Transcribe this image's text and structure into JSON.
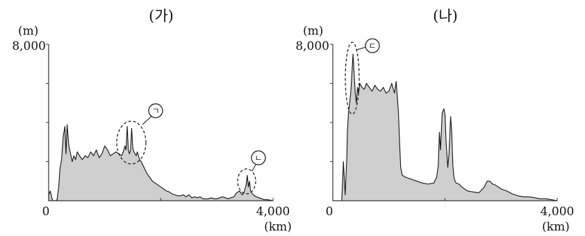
{
  "chart_data": [
    {
      "type": "area",
      "title": "(가)",
      "y_unit": "(m)",
      "x_unit": "(km)",
      "xlim": [
        0,
        4000
      ],
      "ylim": [
        0,
        8000
      ],
      "xtick_labels": [
        "0",
        "4,000"
      ],
      "ytick_labels": [
        "8,000"
      ],
      "yticks_minor": [
        2000,
        4000,
        6000
      ],
      "xticks_minor": [
        2000
      ],
      "series": [
        {
          "x": [
            0,
            30,
            60,
            80,
            120,
            150,
            180,
            200,
            230,
            260,
            290,
            310,
            330,
            360,
            390,
            420,
            450,
            480,
            510,
            550,
            600,
            650,
            700,
            750,
            800,
            850,
            900,
            950,
            1000,
            1050,
            1100,
            1150,
            1200,
            1250,
            1300,
            1330,
            1360,
            1380,
            1400,
            1420,
            1440,
            1460,
            1480,
            1500,
            1520,
            1540,
            1560,
            1580,
            1600,
            1620,
            1650,
            1700,
            1750,
            1800,
            1850,
            1900,
            1950,
            2000,
            2050,
            2100,
            2150,
            2200,
            2250,
            2300,
            2350,
            2400,
            2450,
            2500,
            2550,
            2600,
            2650,
            2700,
            2750,
            2800,
            2850,
            2900,
            2950,
            3000,
            3050,
            3100,
            3150,
            3200,
            3250,
            3300,
            3350,
            3400,
            3450,
            3480,
            3500,
            3520,
            3540,
            3560,
            3580,
            3600,
            3620,
            3650,
            3700,
            3750,
            3800,
            3850,
            3900,
            3950,
            4000
          ],
          "y": [
            300,
            500,
            100,
            0,
            0,
            50,
            700,
            1600,
            2100,
            3300,
            3800,
            2400,
            3900,
            2800,
            2400,
            2000,
            2300,
            2100,
            2500,
            2300,
            2100,
            2300,
            2200,
            2500,
            2300,
            2600,
            2200,
            2400,
            2800,
            2600,
            2300,
            2400,
            2500,
            2400,
            2300,
            2500,
            2800,
            2600,
            3800,
            2600,
            2400,
            2600,
            3700,
            2700,
            2500,
            2400,
            2300,
            2500,
            2300,
            2100,
            2000,
            1700,
            1400,
            1200,
            1000,
            900,
            800,
            700,
            600,
            500,
            450,
            350,
            300,
            250,
            250,
            300,
            200,
            300,
            150,
            200,
            150,
            200,
            100,
            100,
            100,
            150,
            100,
            100,
            150,
            200,
            150,
            100,
            150,
            200,
            400,
            500,
            300,
            400,
            600,
            800,
            1300,
            700,
            1000,
            500,
            400,
            300,
            200,
            150,
            100,
            50,
            50,
            30,
            0
          ]
        }
      ],
      "annotations": [
        {
          "label": "ㄱ"
        },
        {
          "label": "ㄴ"
        }
      ]
    },
    {
      "type": "area",
      "title": "(나)",
      "y_unit": "(m)",
      "x_unit": "(km)",
      "xlim": [
        0,
        4000
      ],
      "ylim": [
        0,
        8000
      ],
      "xtick_labels": [
        "0",
        "4,000"
      ],
      "ytick_labels": [
        "8,000"
      ],
      "yticks_minor": [
        2000,
        4000,
        6000
      ],
      "xticks_minor": [
        2000
      ],
      "series": [
        {
          "x": [
            0,
            60,
            120,
            160,
            190,
            220,
            250,
            260,
            280,
            300,
            320,
            340,
            360,
            380,
            400,
            420,
            440,
            460,
            480,
            520,
            560,
            600,
            650,
            700,
            750,
            800,
            850,
            900,
            950,
            1000,
            1050,
            1100,
            1130,
            1150,
            1170,
            1190,
            1210,
            1240,
            1300,
            1400,
            1500,
            1600,
            1700,
            1800,
            1850,
            1880,
            1900,
            1920,
            1950,
            1980,
            2000,
            2020,
            2050,
            2070,
            2100,
            2120,
            2140,
            2160,
            2180,
            2200,
            2250,
            2300,
            2400,
            2500,
            2600,
            2700,
            2750,
            2800,
            2850,
            2900,
            2950,
            3000,
            3100,
            3200,
            3300,
            3400,
            3500,
            3600,
            3700,
            3800,
            3900,
            4000
          ],
          "y": [
            0,
            0,
            0,
            0,
            2000,
            300,
            2200,
            3500,
            4500,
            5000,
            5500,
            6500,
            7500,
            6500,
            5500,
            5000,
            5800,
            5500,
            6000,
            5800,
            5700,
            6000,
            5800,
            5600,
            5900,
            5700,
            5600,
            5800,
            5500,
            5600,
            6000,
            5500,
            6100,
            5300,
            4500,
            3000,
            1700,
            1300,
            1200,
            1100,
            1000,
            900,
            850,
            900,
            1200,
            1800,
            3500,
            2600,
            4500,
            4700,
            4400,
            3000,
            1700,
            2400,
            4300,
            3500,
            1800,
            1200,
            1000,
            900,
            850,
            700,
            500,
            450,
            400,
            700,
            1000,
            1000,
            850,
            800,
            700,
            600,
            500,
            350,
            250,
            200,
            200,
            150,
            100,
            100,
            50,
            0
          ]
        }
      ],
      "annotations": [
        {
          "label": "ㄷ"
        }
      ]
    }
  ]
}
